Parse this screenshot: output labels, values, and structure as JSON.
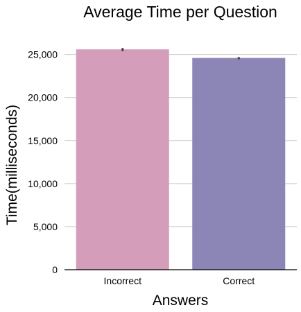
{
  "chart_data": {
    "type": "bar",
    "title": "Average Time per Question",
    "xlabel": "Answers",
    "ylabel": "Time(milliseconds)",
    "categories": [
      "Incorrect",
      "Correct"
    ],
    "values": [
      25600,
      24600
    ],
    "error_bars": [
      [
        25400,
        25750
      ],
      [
        24450,
        24700
      ]
    ],
    "ylim": [
      0,
      26500
    ],
    "yticks": [
      0,
      5000,
      10000,
      15000,
      20000,
      25000
    ],
    "ytick_labels": [
      "0",
      "5,000",
      "10,000",
      "15,000",
      "20,000",
      "25,000"
    ],
    "grid": "horizontal",
    "colors": {
      "bars": [
        "#d49ebb",
        "#8b86b6"
      ],
      "grid": "#cccccc",
      "axis": "#000000",
      "error": "#3a3a3a"
    }
  }
}
